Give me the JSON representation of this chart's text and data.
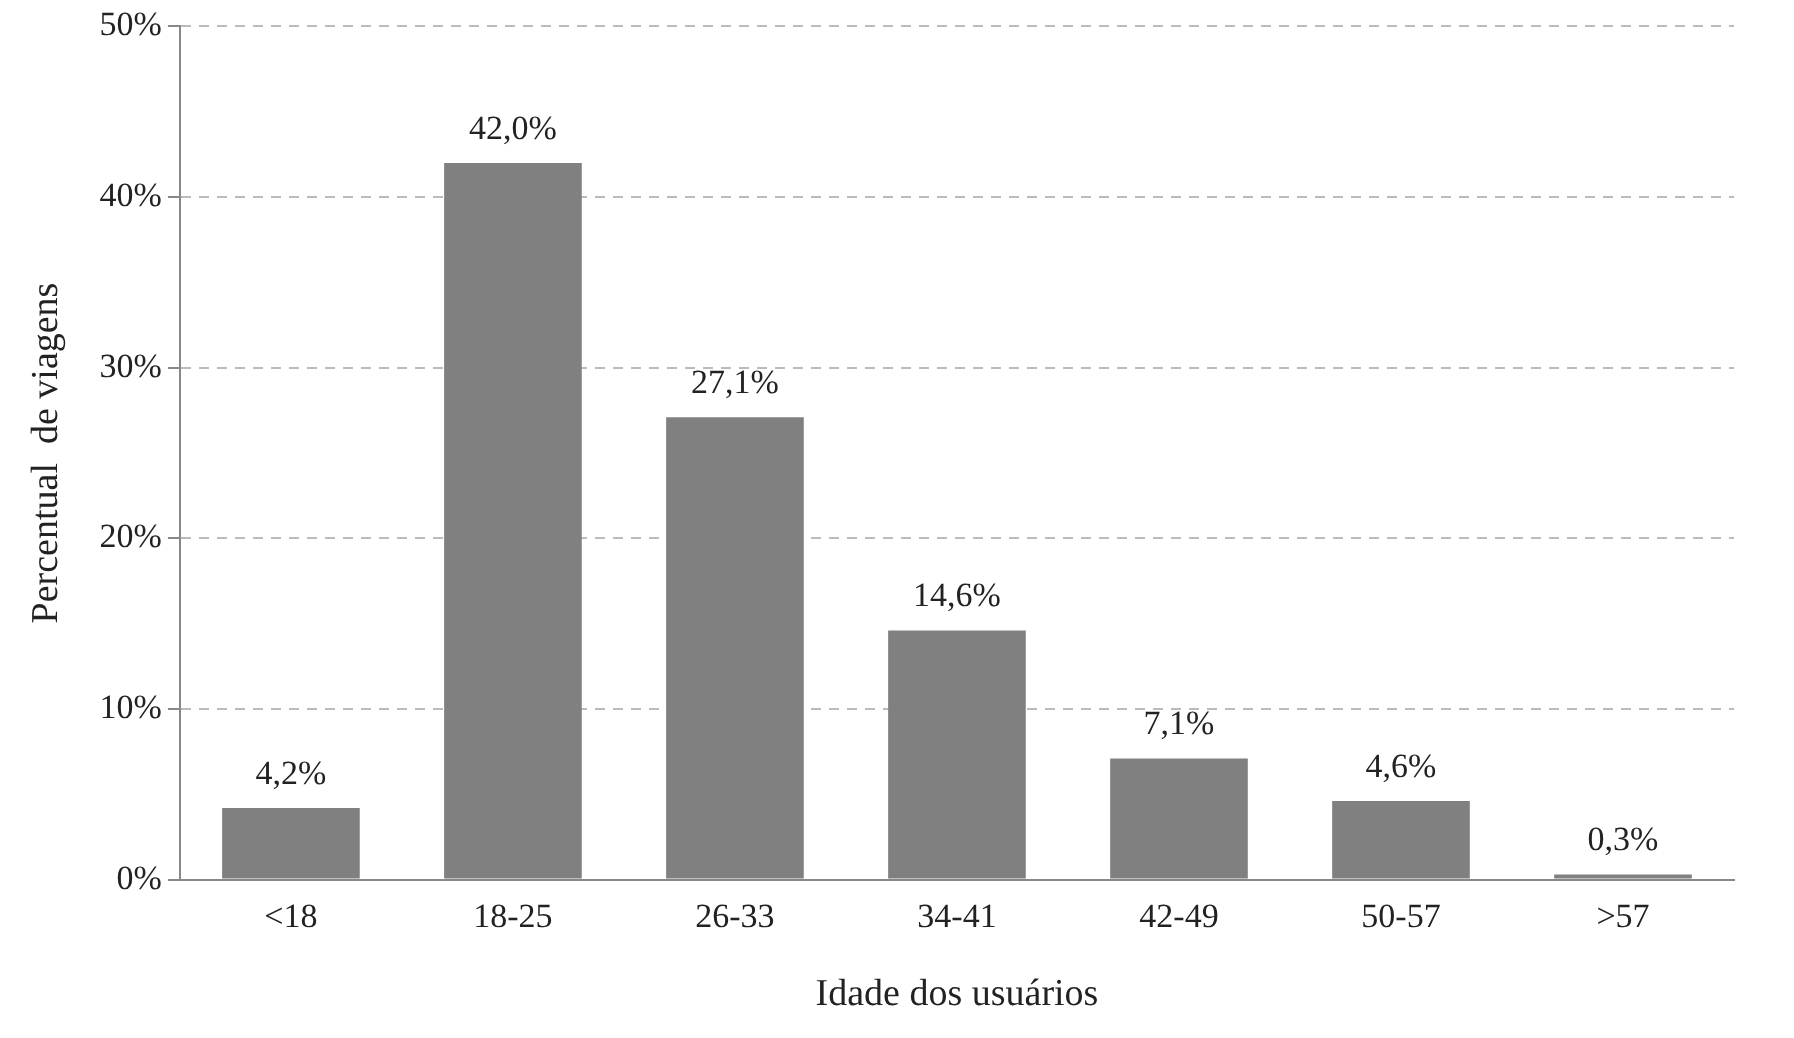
{
  "chart_data": {
    "type": "bar",
    "xlabel": "Idade dos usuários",
    "ylabel": "Percentual  de viagens",
    "categories": [
      "<18",
      "18-25",
      "26-33",
      "34-41",
      "42-49",
      "50-57",
      ">57"
    ],
    "values": [
      4.2,
      42.0,
      27.1,
      14.6,
      7.1,
      4.6,
      0.3
    ],
    "value_labels": [
      "4,2%",
      "42,0%",
      "27,1%",
      "14,6%",
      "7,1%",
      "4,6%",
      "0,3%"
    ],
    "color": "#808080",
    "ylim": [
      0,
      50
    ],
    "yticks": [
      {
        "value": 0,
        "label": "0%"
      },
      {
        "value": 10,
        "label": "10%"
      },
      {
        "value": 20,
        "label": "20%"
      },
      {
        "value": 30,
        "label": "30%"
      },
      {
        "value": 40,
        "label": "40%"
      },
      {
        "value": 50,
        "label": "50%"
      }
    ],
    "grid": "y",
    "legend": false
  }
}
